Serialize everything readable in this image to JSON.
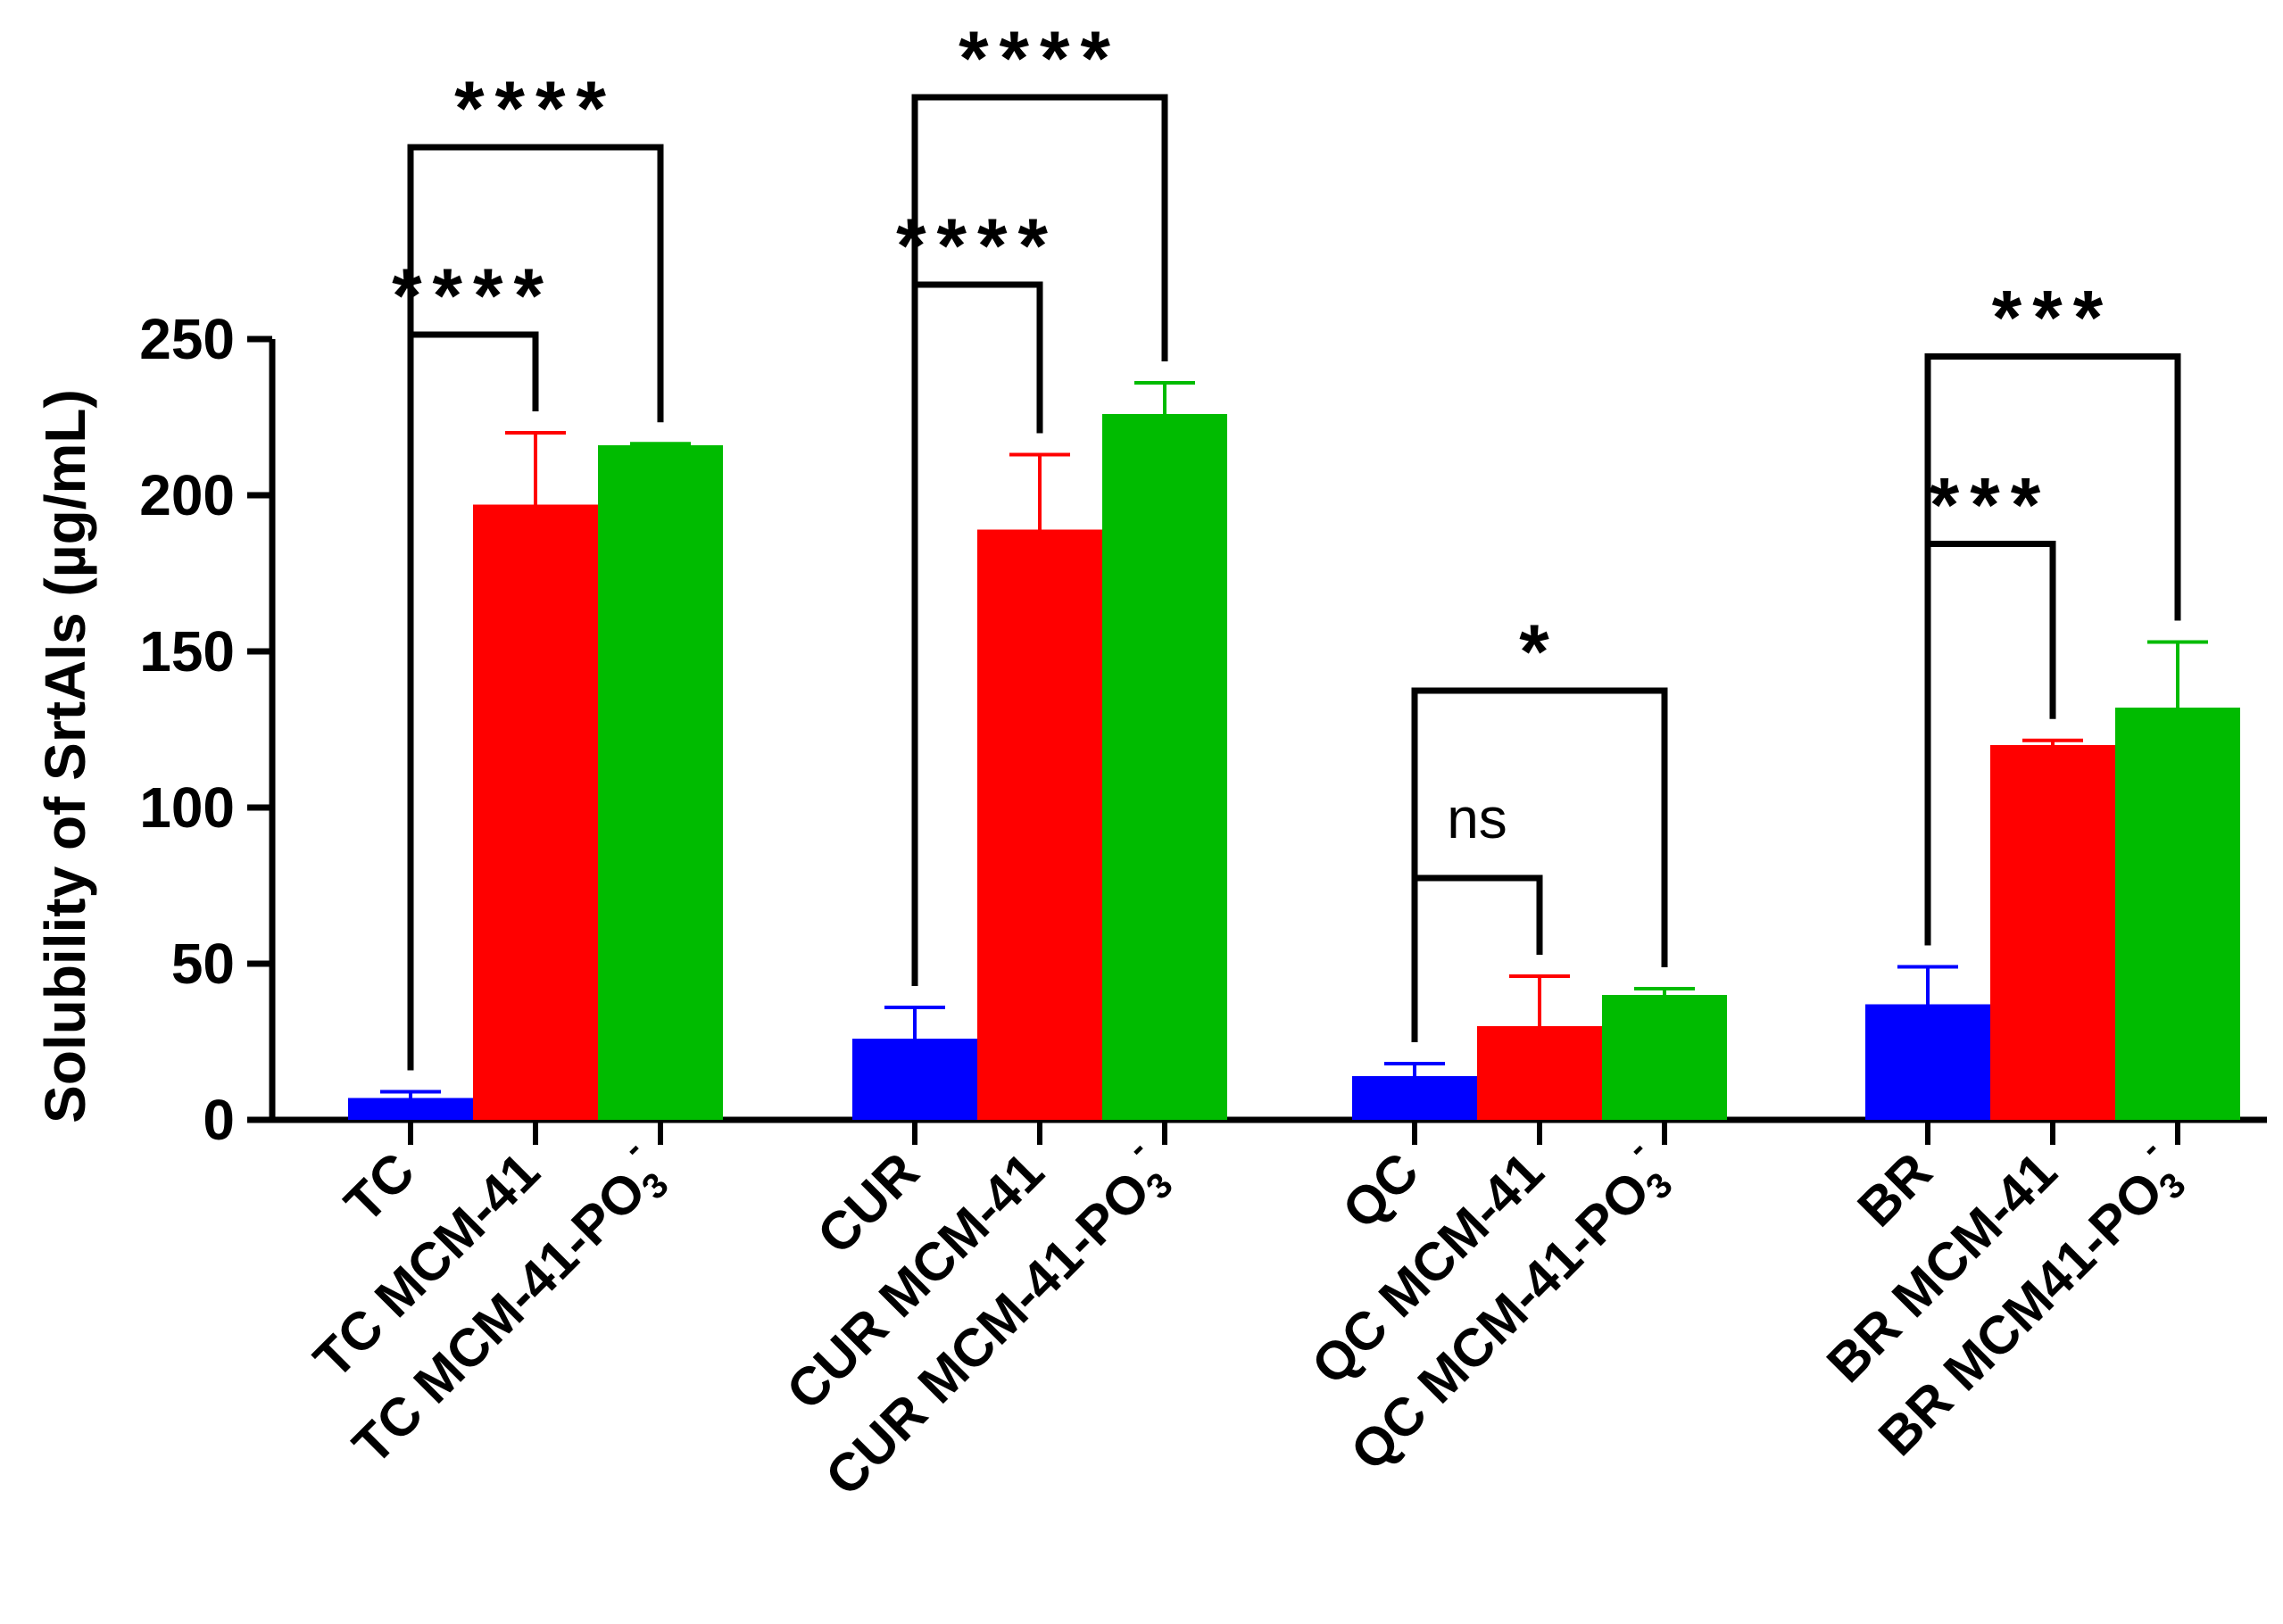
{
  "chart_data": {
    "type": "bar",
    "title": "",
    "xlabel": "",
    "ylabel": "Solubility of SrtAIs (µg/mL)",
    "ylim": [
      0,
      250
    ],
    "yticks": [
      0,
      50,
      100,
      150,
      200,
      250
    ],
    "grid": false,
    "legend": "none",
    "colors": {
      "free": "#0000FF",
      "mcm41": "#FF0000",
      "mcm41_po3": "#00BB00",
      "axis": "#000000"
    },
    "groups": [
      {
        "name": "TC",
        "bars": [
          {
            "label": "TC",
            "value": 7,
            "error": 2,
            "color_key": "free"
          },
          {
            "label": "TC MCM-41",
            "value": 197,
            "error": 23,
            "color_key": "mcm41"
          },
          {
            "label": "TC MCM-41-PO",
            "label_sub": "3",
            "label_sup": "-",
            "value": 216,
            "error": 0.5,
            "color_key": "mcm41_po3"
          }
        ],
        "comparisons": [
          {
            "from": 0,
            "to": 1,
            "label": "****"
          },
          {
            "from": 0,
            "to": 2,
            "label": "****"
          }
        ]
      },
      {
        "name": "CUR",
        "bars": [
          {
            "label": "CUR",
            "value": 26,
            "error": 10,
            "color_key": "free"
          },
          {
            "label": "CUR MCM-41",
            "value": 189,
            "error": 24,
            "color_key": "mcm41"
          },
          {
            "label": "CUR MCM-41-PO",
            "label_sub": "3",
            "label_sup": "-",
            "value": 226,
            "error": 10,
            "color_key": "mcm41_po3"
          }
        ],
        "comparisons": [
          {
            "from": 0,
            "to": 1,
            "label": "****"
          },
          {
            "from": 0,
            "to": 2,
            "label": "****"
          }
        ]
      },
      {
        "name": "QC",
        "bars": [
          {
            "label": "QC",
            "value": 14,
            "error": 4,
            "color_key": "free"
          },
          {
            "label": "QC MCM-41",
            "value": 30,
            "error": 16,
            "color_key": "mcm41"
          },
          {
            "label": "QC MCM-41-PO",
            "label_sub": "3",
            "label_sup": "-",
            "value": 40,
            "error": 2,
            "color_key": "mcm41_po3"
          }
        ],
        "comparisons": [
          {
            "from": 0,
            "to": 1,
            "label": "ns"
          },
          {
            "from": 0,
            "to": 2,
            "label": "*"
          }
        ]
      },
      {
        "name": "BR",
        "bars": [
          {
            "label": "BR",
            "value": 37,
            "error": 12,
            "color_key": "free"
          },
          {
            "label": "BR MCM-41",
            "value": 120,
            "error": 1.5,
            "color_key": "mcm41"
          },
          {
            "label": "BR MCM41-PO",
            "label_sub": "3",
            "label_sup": "-",
            "value": 132,
            "error": 21,
            "color_key": "mcm41_po3"
          }
        ],
        "comparisons": [
          {
            "from": 0,
            "to": 1,
            "label": "***"
          },
          {
            "from": 0,
            "to": 2,
            "label": "***"
          }
        ]
      }
    ]
  }
}
